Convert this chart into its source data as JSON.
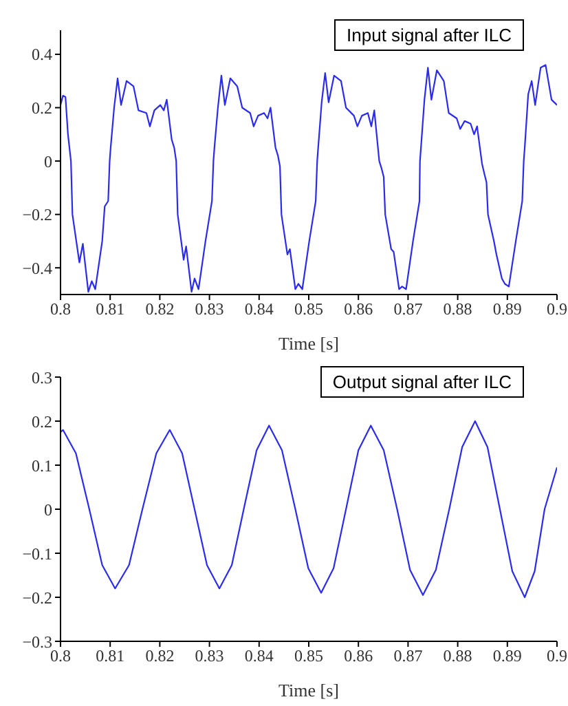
{
  "chart_data": [
    {
      "type": "line",
      "title": "Input signal after ILC",
      "xlabel": "Time [s]",
      "xlim": [
        0.8,
        0.9
      ],
      "xticks": [
        0.8,
        0.81,
        0.82,
        0.83,
        0.84,
        0.85,
        0.86,
        0.87,
        0.88,
        0.89,
        0.9
      ],
      "ylim": [
        -0.5,
        0.49
      ],
      "yticks": [
        -0.4,
        -0.2,
        0,
        0.2,
        0.4
      ],
      "grid": false,
      "legend": false,
      "marker": "none",
      "line_style": "solid",
      "series": [
        {
          "color": "#2b2bf0",
          "x": [
            0.8,
            0.8005,
            0.801,
            0.8015,
            0.8021,
            0.8024,
            0.8038,
            0.8045,
            0.8056,
            0.8063,
            0.807,
            0.8084,
            0.8089,
            0.8096,
            0.8099,
            0.8101,
            0.8108,
            0.8115,
            0.8122,
            0.8133,
            0.8147,
            0.8157,
            0.8173,
            0.818,
            0.8189,
            0.8201,
            0.8208,
            0.8214,
            0.8224,
            0.8229,
            0.8233,
            0.8236,
            0.8248,
            0.8253,
            0.8264,
            0.827,
            0.8278,
            0.8292,
            0.8305,
            0.8308,
            0.831,
            0.8317,
            0.8324,
            0.8331,
            0.8342,
            0.8356,
            0.8366,
            0.8382,
            0.8389,
            0.8398,
            0.841,
            0.8417,
            0.8423,
            0.8433,
            0.8438,
            0.8442,
            0.8445,
            0.8457,
            0.8462,
            0.8473,
            0.8479,
            0.8487,
            0.8501,
            0.8514,
            0.8517,
            0.8519,
            0.8526,
            0.8533,
            0.854,
            0.8551,
            0.8565,
            0.8575,
            0.8591,
            0.8598,
            0.8607,
            0.8619,
            0.8626,
            0.8632,
            0.8642,
            0.8647,
            0.8651,
            0.8654,
            0.8666,
            0.8671,
            0.8682,
            0.8688,
            0.8696,
            0.871,
            0.8723,
            0.8724,
            0.8726,
            0.8733,
            0.874,
            0.8747,
            0.8758,
            0.8772,
            0.8782,
            0.8798,
            0.8805,
            0.8814,
            0.8826,
            0.8833,
            0.8839,
            0.8849,
            0.8854,
            0.8858,
            0.8861,
            0.8873,
            0.8878,
            0.8889,
            0.8895,
            0.8903,
            0.8917,
            0.893,
            0.8933,
            0.8935,
            0.8942,
            0.8949,
            0.8956,
            0.8967,
            0.8977,
            0.8989,
            0.9
          ],
          "values": [
            0.21,
            0.245,
            0.24,
            0.1,
            0,
            -0.2,
            -0.38,
            -0.31,
            -0.49,
            -0.45,
            -0.48,
            -0.3,
            -0.17,
            -0.15,
            0,
            0.05,
            0.2,
            0.31,
            0.21,
            0.3,
            0.28,
            0.19,
            0.18,
            0.13,
            0.19,
            0.21,
            0.19,
            0.23,
            0.08,
            0.05,
            0,
            -0.2,
            -0.37,
            -0.32,
            -0.49,
            -0.44,
            -0.48,
            -0.3,
            -0.15,
            0,
            0.05,
            0.2,
            0.32,
            0.21,
            0.31,
            0.28,
            0.2,
            0.18,
            0.13,
            0.17,
            0.18,
            0.16,
            0.2,
            0.05,
            0.02,
            -0.02,
            -0.2,
            -0.35,
            -0.33,
            -0.48,
            -0.46,
            -0.48,
            -0.3,
            -0.15,
            0,
            0.05,
            0.22,
            0.33,
            0.22,
            0.32,
            0.3,
            0.2,
            0.17,
            0.13,
            0.17,
            0.18,
            0.13,
            0.19,
            0,
            -0.03,
            -0.06,
            -0.2,
            -0.33,
            -0.34,
            -0.48,
            -0.47,
            -0.48,
            -0.3,
            -0.15,
            0,
            0.05,
            0.23,
            0.35,
            0.23,
            0.34,
            0.3,
            0.18,
            0.16,
            0.12,
            0.15,
            0.14,
            0.1,
            0.13,
            -0.01,
            -0.05,
            -0.08,
            -0.2,
            -0.3,
            -0.35,
            -0.44,
            -0.46,
            -0.47,
            -0.3,
            -0.15,
            0,
            0.05,
            0.25,
            0.3,
            0.21,
            0.35,
            0.36,
            0.23,
            0.21
          ]
        }
      ]
    },
    {
      "type": "line",
      "title": "Output signal after ILC",
      "xlabel": "Time [s]",
      "xlim": [
        0.8,
        0.9
      ],
      "xticks": [
        0.8,
        0.81,
        0.82,
        0.83,
        0.84,
        0.85,
        0.86,
        0.87,
        0.88,
        0.89,
        0.9
      ],
      "ylim": [
        -0.3,
        0.3
      ],
      "yticks": [
        -0.3,
        -0.2,
        -0.1,
        0,
        0.1,
        0.2,
        0.3
      ],
      "grid": false,
      "legend": false,
      "marker": "none",
      "line_style": "solid",
      "series": [
        {
          "color": "#2b2bf0",
          "x": [
            0.8,
            0.8005,
            0.8031,
            0.8058,
            0.8084,
            0.811,
            0.8138,
            0.8165,
            0.8193,
            0.822,
            0.8245,
            0.827,
            0.8295,
            0.832,
            0.8345,
            0.837,
            0.8395,
            0.842,
            0.8446,
            0.8473,
            0.8499,
            0.8525,
            0.855,
            0.8575,
            0.86,
            0.8625,
            0.8651,
            0.8678,
            0.8704,
            0.873,
            0.8756,
            0.8783,
            0.8809,
            0.8835,
            0.886,
            0.8885,
            0.891,
            0.8935,
            0.8955,
            0.8975,
            0.9
          ],
          "values": [
            0.175,
            0.18,
            0.127,
            0,
            -0.127,
            -0.18,
            -0.127,
            0,
            0.127,
            0.18,
            0.127,
            0,
            -0.127,
            -0.18,
            -0.127,
            0.005,
            0.134,
            0.19,
            0.134,
            0,
            -0.134,
            -0.19,
            -0.134,
            0,
            0.134,
            0.19,
            0.134,
            0,
            -0.138,
            -0.195,
            -0.138,
            0,
            0.141,
            0.2,
            0.141,
            0,
            -0.141,
            -0.2,
            -0.141,
            0,
            0.095
          ]
        }
      ]
    }
  ]
}
